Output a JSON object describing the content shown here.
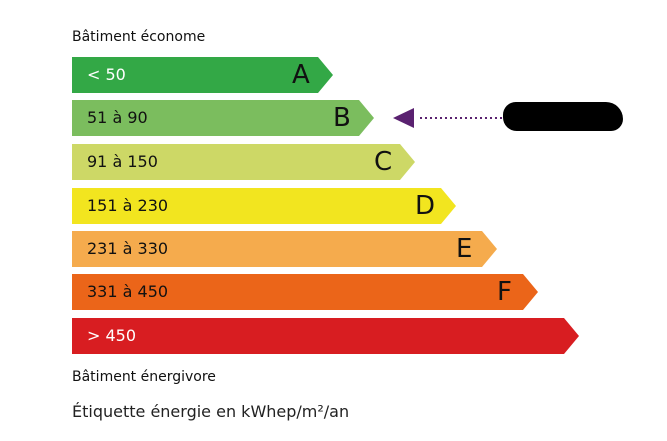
{
  "top_label": "Bâtiment économe",
  "bottom_label": "Bâtiment énergivore",
  "unit_label": "Étiquette énergie en kWhep/m²/an",
  "classes": [
    {
      "range": "< 50",
      "letter": "A",
      "color": "#33a846",
      "text_color": "#ffffff"
    },
    {
      "range": "51 à 90",
      "letter": "B",
      "color": "#7bbd5e",
      "text_color": "#111111"
    },
    {
      "range": "91 à 150",
      "letter": "C",
      "color": "#cdd866",
      "text_color": "#111111"
    },
    {
      "range": "151 à 230",
      "letter": "D",
      "color": "#f2e51f",
      "text_color": "#111111"
    },
    {
      "range": "231 à 330",
      "letter": "E",
      "color": "#f5ab4d",
      "text_color": "#111111"
    },
    {
      "range": "331 à 450",
      "letter": "F",
      "color": "#eb6519",
      "text_color": "#111111"
    },
    {
      "range": "> 450",
      "letter": "",
      "color": "#d81d21",
      "text_color": "#ffffff"
    }
  ],
  "indicator": {
    "class": "B",
    "color": "#5a2170"
  }
}
